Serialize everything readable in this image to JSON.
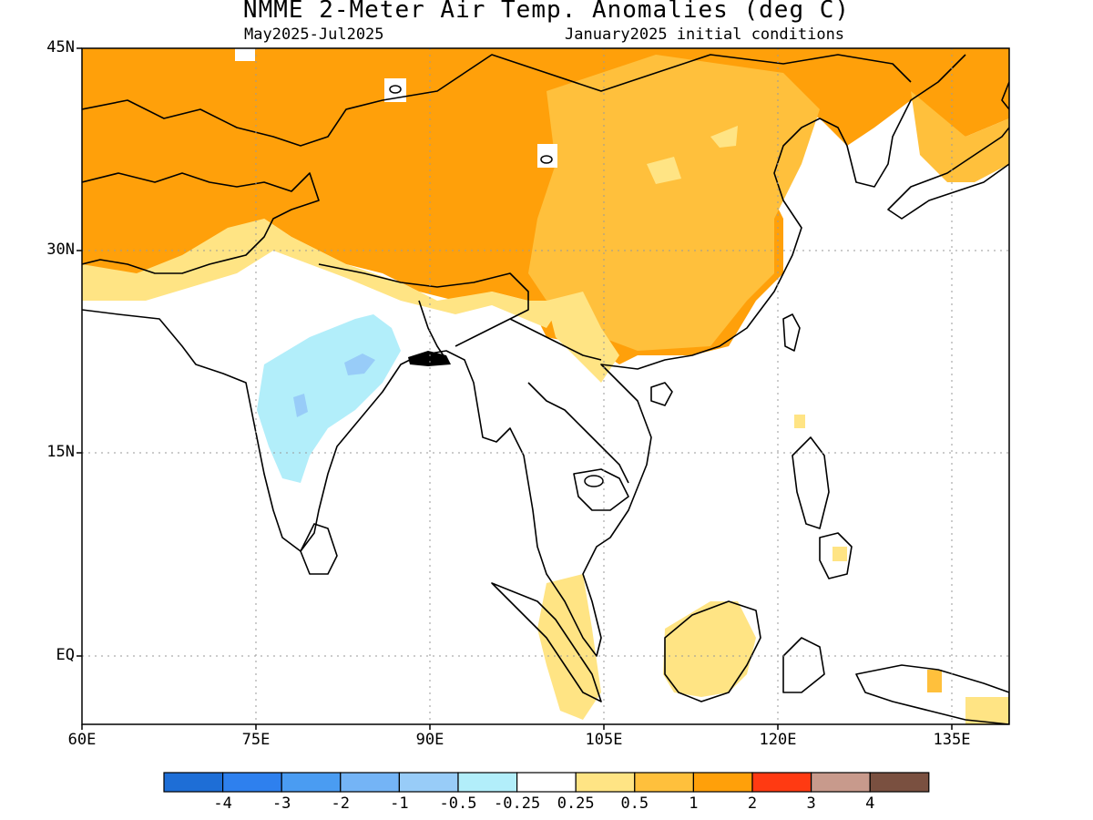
{
  "header": {
    "title": "NMME 2-Meter Air Temp. Anomalies (deg C)",
    "period": "May2025-Jul2025",
    "init": "January2025 initial conditions"
  },
  "axes": {
    "lat_labels": [
      "45N",
      "30N",
      "15N",
      "EQ"
    ],
    "lat_values": [
      45,
      30,
      15,
      0
    ],
    "lon_labels": [
      "60E",
      "75E",
      "90E",
      "105E",
      "120E",
      "135E"
    ],
    "lon_values": [
      60,
      75,
      90,
      105,
      120,
      135
    ],
    "lon_range": [
      60,
      140
    ],
    "lat_range": [
      -5,
      45
    ]
  },
  "legend": {
    "colors": [
      "#1e6ed6",
      "#2e80ee",
      "#4a9cf2",
      "#74b4f6",
      "#98ccf8",
      "#b2eefa",
      "#ffffff",
      "#ffe484",
      "#ffc03c",
      "#ffa00a",
      "#ff3a12",
      "#c89a8c",
      "#7a5040"
    ],
    "labels": [
      "-4",
      "-3",
      "-2",
      "-1",
      "-0.5",
      "-0.25",
      "0.25",
      "0.5",
      "1",
      "2",
      "3",
      "4"
    ]
  }
}
